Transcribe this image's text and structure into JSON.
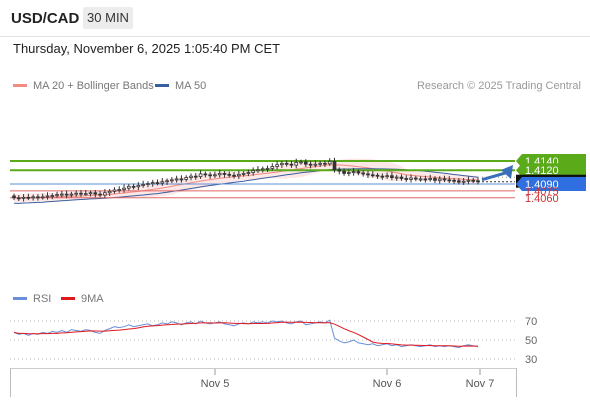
{
  "header": {
    "pair": "USD/CAD",
    "timeframe": "30 MIN"
  },
  "datetime": "Thursday, November 6, 2025 1:05:40 PM CET",
  "legend": {
    "ma20": "MA 20 + Bollinger Bands",
    "ma50": "MA 50",
    "rsi": "RSI",
    "ma9": "9MA"
  },
  "credit": "Research © 2025 Trading Central",
  "colors": {
    "candle": "#333333",
    "ma20": "#f28b82",
    "bollinger_fill": "#fde3e3",
    "ma50": "#3a5f9e",
    "target_lines": "#5aaa1a",
    "pivot_line": "#5f8fd6",
    "support_lines": "#e06666",
    "arrow": "#3a6fb8",
    "rsi": "#6a8fd8",
    "ma9": "#e0191f"
  },
  "chart_data": {
    "type": "candlestick",
    "instrument": "USD/CAD",
    "timeframe": "30 MIN",
    "x_ticks": [
      "Nov 5",
      "Nov 6",
      "Nov 7"
    ],
    "price_levels": [
      {
        "label": "1.4140",
        "value": 1.414,
        "kind": "target"
      },
      {
        "label": "1.4120",
        "value": 1.412,
        "kind": "target"
      },
      {
        "label": "1.4095",
        "value": 1.4095,
        "kind": "last"
      },
      {
        "label": "1.4090",
        "value": 1.409,
        "kind": "pivot"
      },
      {
        "label": "1.4075",
        "value": 1.4075,
        "kind": "support"
      },
      {
        "label": "1.4060",
        "value": 1.406,
        "kind": "support"
      }
    ],
    "approx_closes": [
      1.406,
      1.4059,
      1.4061,
      1.406,
      1.4062,
      1.4061,
      1.4062,
      1.4064,
      1.4065,
      1.4067,
      1.4068,
      1.4066,
      1.4068,
      1.407,
      1.4069,
      1.4069,
      1.4071,
      1.4068,
      1.4066,
      1.4071,
      1.4074,
      1.4077,
      1.4078,
      1.4081,
      1.4085,
      1.4084,
      1.4087,
      1.4089,
      1.4091,
      1.4093,
      1.4092,
      1.4095,
      1.4097,
      1.4099,
      1.4101,
      1.41,
      1.4104,
      1.4107,
      1.4106,
      1.4112,
      1.411,
      1.4108,
      1.411,
      1.4113,
      1.4111,
      1.4109,
      1.4108,
      1.4111,
      1.4113,
      1.4115,
      1.4119,
      1.4121,
      1.4123,
      1.4124,
      1.4128,
      1.4132,
      1.4135,
      1.4133,
      1.4131,
      1.4137,
      1.4138,
      1.4133,
      1.4131,
      1.4133,
      1.4135,
      1.4134,
      1.4139,
      1.4121,
      1.4118,
      1.4113,
      1.4115,
      1.4117,
      1.4114,
      1.4112,
      1.411,
      1.4109,
      1.4107,
      1.4106,
      1.4108,
      1.4104,
      1.4105,
      1.4102,
      1.41,
      1.4103,
      1.4101,
      1.4101,
      1.41,
      1.4102,
      1.4098,
      1.4101,
      1.4099,
      1.4098,
      1.4097,
      1.4094,
      1.4096,
      1.4098,
      1.4097,
      1.4095
    ],
    "forecast_target": 1.414,
    "rsi_ticks": [
      70,
      50,
      30
    ],
    "rsi_values": [
      58,
      56,
      57,
      55,
      57,
      56,
      58,
      57,
      59,
      58,
      60,
      58,
      61,
      60,
      59,
      61,
      60,
      58,
      57,
      60,
      62,
      64,
      63,
      64,
      66,
      64,
      65,
      66,
      67,
      65,
      66,
      68,
      67,
      69,
      68,
      66,
      68,
      69,
      67,
      70,
      68,
      67,
      68,
      69,
      67,
      66,
      65,
      67,
      68,
      67,
      69,
      68,
      69,
      68,
      70,
      69,
      70,
      68,
      67,
      69,
      70,
      66,
      67,
      68,
      69,
      68,
      71,
      52,
      49,
      47,
      48,
      50,
      47,
      46,
      45,
      46,
      44,
      45,
      46,
      44,
      45,
      43,
      44,
      45,
      44,
      43,
      44,
      45,
      43,
      44,
      43,
      44,
      43,
      42,
      44,
      45,
      44,
      43
    ]
  }
}
